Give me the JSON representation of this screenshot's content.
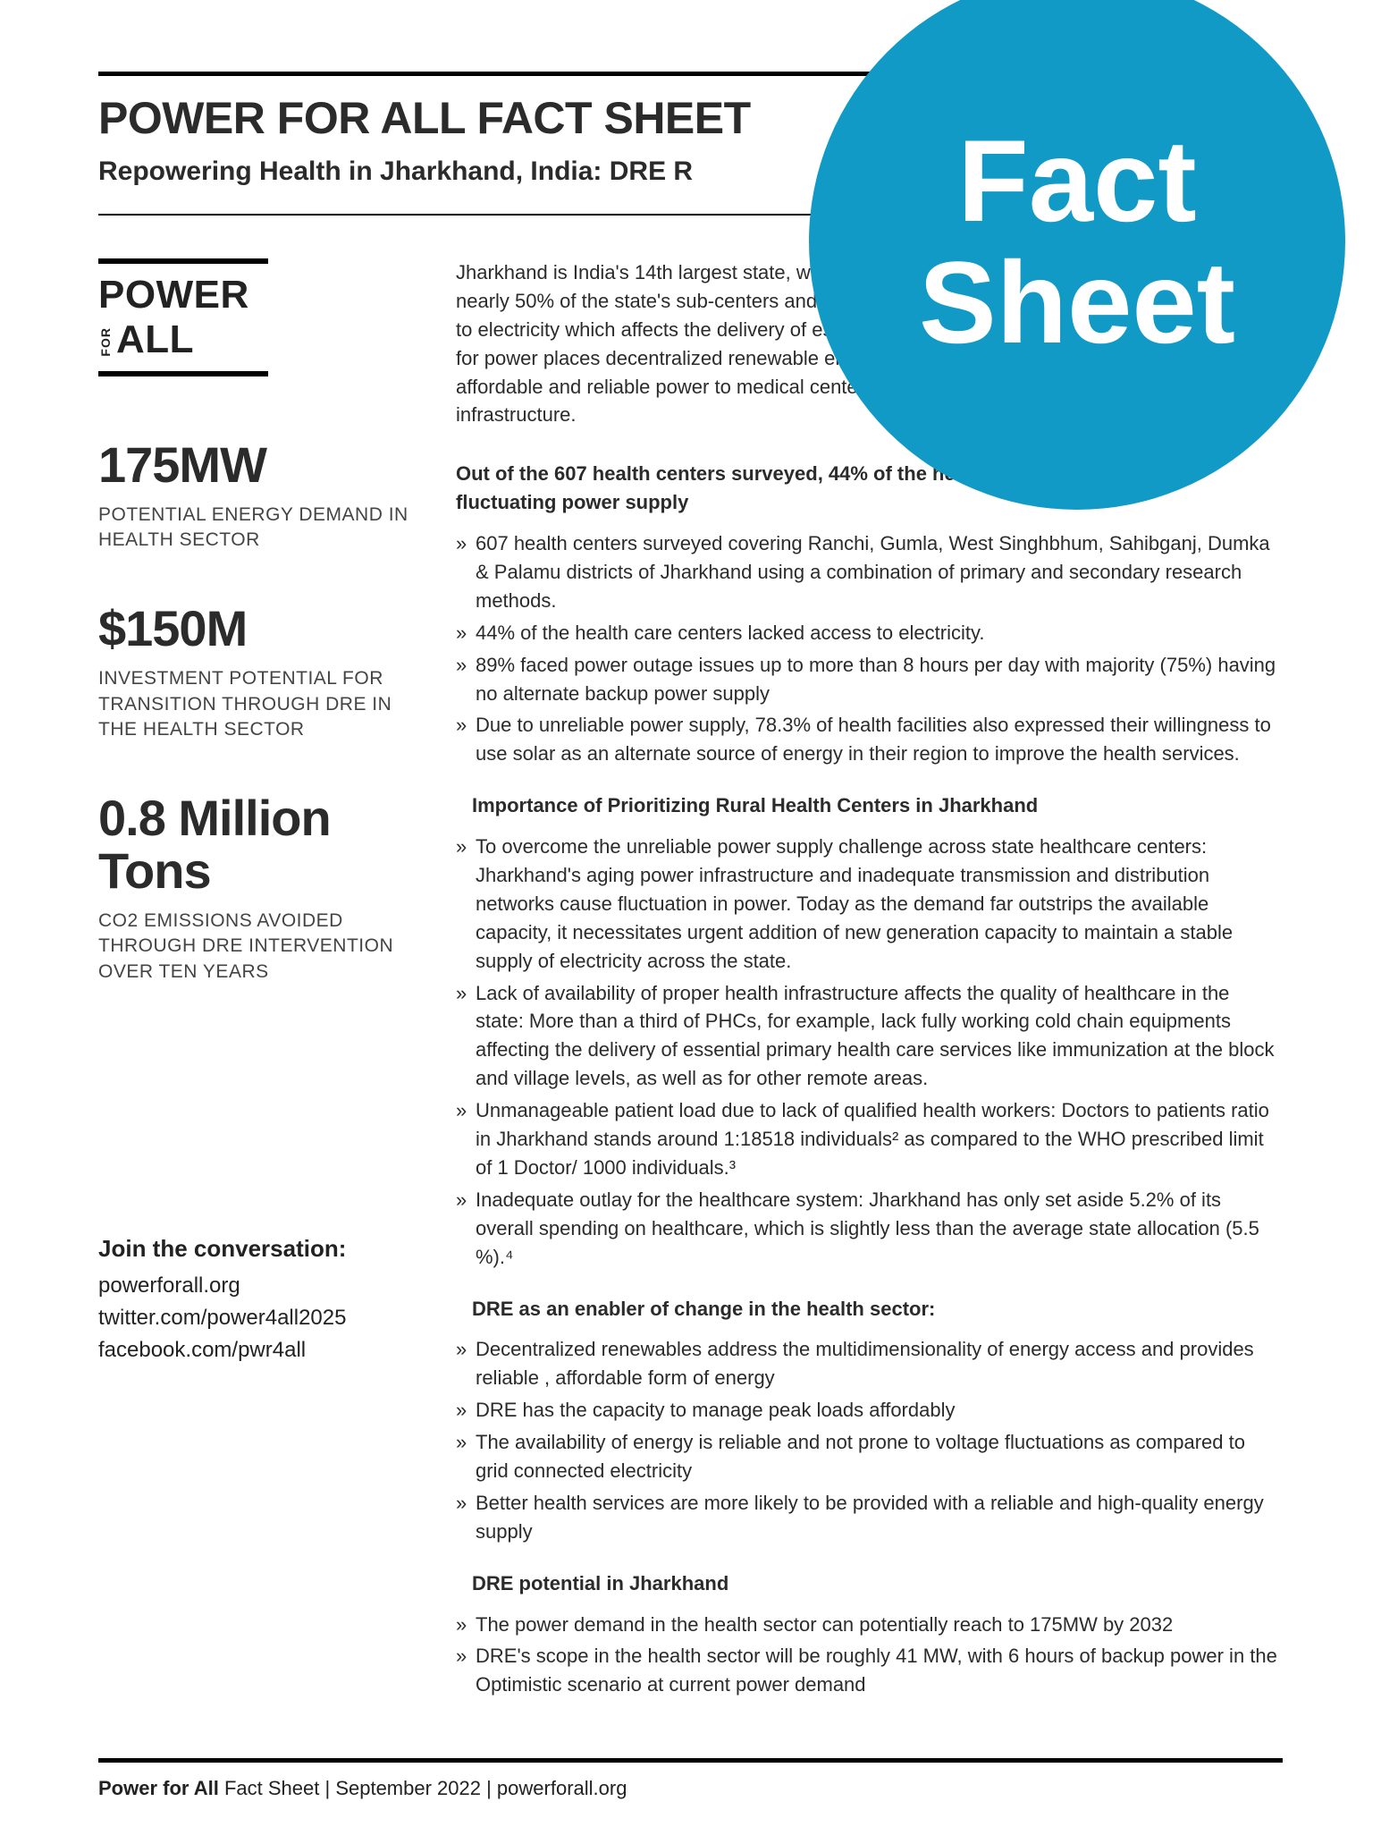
{
  "header": {
    "title": "POWER FOR ALL FACT SHEET",
    "subtitle": "Repowering Health in Jharkhand, India: DRE R"
  },
  "badge": {
    "line1": "Fact",
    "line2": "Sheet",
    "bg_color": "#129ac7",
    "text_color": "#ffffff"
  },
  "logo": {
    "line1": "POWER",
    "for": "FOR",
    "line2": "ALL"
  },
  "stats": [
    {
      "value": "175MW",
      "label": "POTENTIAL ENERGY DEMAND IN HEALTH SECTOR"
    },
    {
      "value": "$150M",
      "label": "INVESTMENT POTENTIAL FOR TRANSITION THROUGH DRE IN THE HEALTH SECTOR"
    },
    {
      "value": "0.8 Million  Tons",
      "label": "CO2 EMISSIONS AVOIDED THROUGH DRE INTERVENTION OVER TEN YEARS"
    }
  ],
  "intro": "Jharkhand is India's 14th largest state, with catastrophic healthcare infrastructure problems; nearly 50% of the state's sub-centers and a large fraction of other facilities do not have access to electricity which affects the delivery of essential health services. The rapidly rising demand for power places decentralized renewable energy in an unique position to be the provider of affordable and reliable power to medical centers thereby strengthening the health infrastructure.",
  "sections": [
    {
      "heading": "Out of the 607 health centers surveyed, 44% of the health centers experienced fluctuating power supply",
      "indent": false,
      "items": [
        "607 health centers surveyed covering Ranchi, Gumla, West Singhbhum, Sahibganj, Dumka & Palamu districts of Jharkhand using a combination of primary and secondary research methods.",
        "44% of the health care centers lacked access to electricity.",
        "89% faced power outage issues up to more than 8 hours per day with majority (75%) having no alternate backup power supply",
        "Due to unreliable power supply, 78.3% of health facilities also expressed their willingness to use solar as an alternate source of energy in their region to improve the health services."
      ]
    },
    {
      "heading": "Importance of Prioritizing Rural Health Centers in Jharkhand",
      "indent": true,
      "items": [
        "To overcome the unreliable power supply challenge across state healthcare centers: Jharkhand's aging power infrastructure and inadequate transmission and distribution networks cause fluctuation in power. Today as the demand far outstrips the available capacity, it necessitates urgent addition of new generation capacity to maintain a stable supply of electricity across the state.",
        "Lack of availability of proper health infrastructure affects the quality of healthcare in the state: More than a third of PHCs, for example, lack fully working cold chain equipments affecting the delivery of essential primary health care services like immunization at the block and village levels, as well as for other remote areas.",
        "Unmanageable patient load due to lack of qualified health workers: Doctors to patients ratio in Jharkhand stands around 1:18518 individuals² as compared to the WHO prescribed limit of 1 Doctor/ 1000 individuals.³",
        "Inadequate outlay for the healthcare system: Jharkhand has only set aside 5.2% of its overall spending on healthcare, which is slightly less than the average state allocation (5.5 %).⁴"
      ]
    },
    {
      "heading": "DRE as an enabler of change in the health sector:",
      "indent": true,
      "items": [
        "Decentralized renewables address the multidimensionality of energy access and provides reliable , affordable form of energy",
        "DRE has the capacity to manage peak loads affordably",
        "The availability of energy is reliable and not prone to voltage fluctuations as compared to grid connected electricity",
        "Better health services are more likely to be provided with a reliable and high-quality energy supply"
      ]
    },
    {
      "heading": "DRE potential in Jharkhand",
      "indent": true,
      "items": [
        "The power demand in the health sector can potentially reach to 175MW by 2032",
        "DRE's scope in the health sector will be roughly 41 MW, with 6 hours of backup power in the Optimistic scenario at current power demand"
      ]
    }
  ],
  "join": {
    "heading": "Join the conversation:",
    "lines": [
      "powerforall.org",
      "twitter.com/power4all2025",
      "facebook.com/pwr4all"
    ]
  },
  "footer": {
    "brand": "Power for All",
    "rest": " Fact Sheet | September 2022 | powerforall.org"
  }
}
